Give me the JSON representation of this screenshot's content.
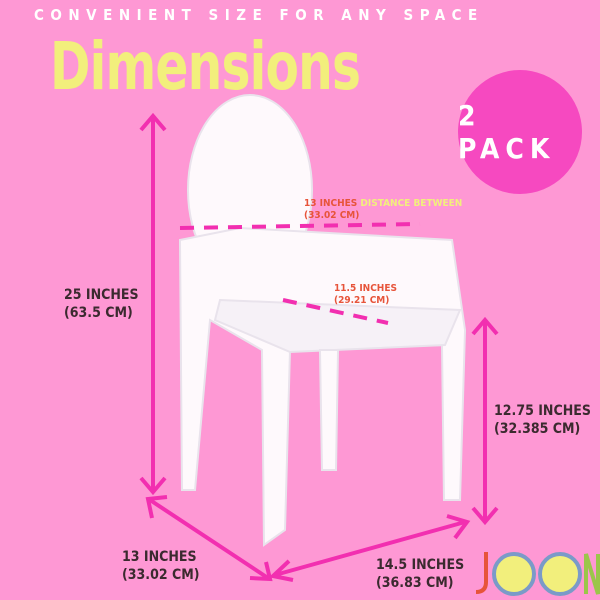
{
  "header": {
    "tagline": "CONVENIENT SIZE FOR ANY SPACE",
    "title": "Dimensions"
  },
  "badge": {
    "label": "2 PACK",
    "color": "#f649c0"
  },
  "measurements": {
    "height": {
      "inches": "25 INCHES",
      "cm": "(63.5 CM)"
    },
    "seat_height": {
      "inches": "12.75 INCHES",
      "cm": "(32.385 CM)"
    },
    "depth": {
      "inches": "13 INCHES",
      "cm": "(33.02 CM)"
    },
    "width": {
      "inches": "14.5 INCHES",
      "cm": "(36.83 CM)"
    },
    "arm_distance": {
      "inches": "13 INCHES",
      "cm": "(33.02 CM)",
      "note": "DISTANCE BETWEEN"
    },
    "seat_width": {
      "inches": "11.5 INCHES",
      "cm": "(29.21 CM)"
    }
  },
  "brand": {
    "logo": "JOON"
  },
  "colors": {
    "background": "#fe98d4",
    "arrow": "#f22fb0",
    "accent_yellow": "#f2ef7c",
    "label_orange": "#e7543a"
  }
}
